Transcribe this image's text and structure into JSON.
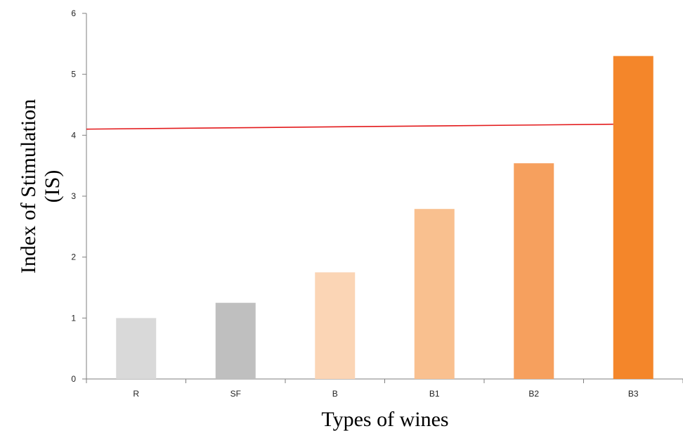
{
  "chart_data": {
    "type": "bar",
    "title": "",
    "xlabel": "Types of wines",
    "ylabel_lines": [
      "Index of Stimulation",
      "(IS)"
    ],
    "categories": [
      "R",
      "SF",
      "B",
      "B1",
      "B2",
      "B3"
    ],
    "values": [
      1.0,
      1.25,
      1.75,
      2.79,
      3.54,
      5.3
    ],
    "bar_colors": [
      "#d9d9d9",
      "#bfbfbf",
      "#fbd5b5",
      "#f9c08f",
      "#f6a05e",
      "#f4862a"
    ],
    "ylim": [
      0,
      6
    ],
    "yticks": [
      0,
      1,
      2,
      3,
      4,
      5,
      6
    ],
    "grid": false,
    "reference_line": {
      "x_start": "R",
      "x_end": "B3",
      "y_start": 4.1,
      "y_end": 4.18,
      "color": "#e31a1c"
    }
  }
}
